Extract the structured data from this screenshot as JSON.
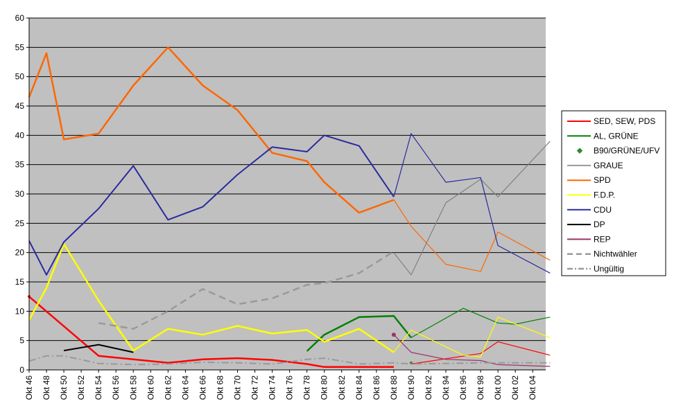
{
  "chart_data": {
    "type": "line",
    "categories": [
      "Okt 46",
      "Okt 48",
      "Okt 50",
      "Okt 52",
      "Okt 54",
      "Okt 56",
      "Okt 58",
      "Okt 60",
      "Okt 62",
      "Okt 64",
      "Okt 66",
      "Okt 68",
      "Okt 70",
      "Okt 72",
      "Okt 74",
      "Okt 76",
      "Okt 78",
      "Okt 80",
      "Okt 82",
      "Okt 84",
      "Okt 86",
      "Okt 88",
      "Okt 90",
      "Okt 92",
      "Okt 94",
      "Okt 96",
      "Okt 98",
      "Okt 00",
      "Okt 02",
      "Okt 04"
    ],
    "ylim": [
      0,
      60
    ],
    "yticks": [
      0,
      5,
      10,
      15,
      20,
      25,
      30,
      35,
      40,
      45,
      50,
      55,
      60
    ],
    "grid": "horizontal",
    "legend_position": "right",
    "plot_background": "#c0c0c0",
    "series": [
      {
        "name": "SED, SEW, PDS",
        "color": "#ff0000",
        "width": 2.5,
        "points": [
          [
            0,
            12.5
          ],
          [
            4,
            2.4
          ],
          [
            8,
            1.2
          ],
          [
            10,
            1.8
          ],
          [
            12,
            2.0
          ],
          [
            14,
            1.7
          ],
          [
            16,
            1.0
          ],
          [
            17,
            0.5
          ],
          [
            19,
            0.5
          ],
          [
            21,
            0.5
          ]
        ]
      },
      {
        "name": "SED, SEW, PDS",
        "color": "#ff0000",
        "width": 1.2,
        "points": [
          [
            22,
            1.0
          ],
          [
            26,
            2.8
          ],
          [
            27,
            4.8
          ],
          [
            30,
            2.5
          ]
        ]
      },
      {
        "name": "AL, GRÜNE",
        "color": "#008000",
        "width": 2.5,
        "points": [
          [
            16,
            3.2
          ],
          [
            17,
            6.0
          ],
          [
            19,
            9.0
          ],
          [
            21,
            9.2
          ],
          [
            22,
            5.5
          ]
        ]
      },
      {
        "name": "AL, GRÜNE",
        "color": "#008000",
        "width": 1.2,
        "points": [
          [
            22,
            5.5
          ],
          [
            25,
            10.5
          ],
          [
            27,
            8.0
          ],
          [
            28,
            7.8
          ],
          [
            30,
            9.0
          ]
        ]
      },
      {
        "name": "B90/GRÜNE/UFV",
        "color": "#2e8b2e",
        "width": 1.2,
        "points": [
          [
            22,
            1.2
          ]
        ]
      },
      {
        "name": "GRAUE",
        "color": "#808080",
        "width": 1.2,
        "points": [
          [
            21,
            20.0
          ],
          [
            22,
            16.2
          ],
          [
            24,
            28.5
          ],
          [
            26,
            32.5
          ],
          [
            27,
            29.5
          ],
          [
            30,
            39.0
          ]
        ]
      },
      {
        "name": "SPD",
        "color": "#ff6600",
        "width": 2.5,
        "points": [
          [
            0,
            46.5
          ],
          [
            1,
            54.0
          ],
          [
            2,
            39.3
          ],
          [
            4,
            40.3
          ],
          [
            6,
            48.5
          ],
          [
            8,
            55.0
          ],
          [
            10,
            48.5
          ],
          [
            12,
            44.3
          ],
          [
            14,
            37.0
          ],
          [
            16,
            35.6
          ],
          [
            17,
            32.0
          ],
          [
            19,
            26.8
          ],
          [
            21,
            29.0
          ]
        ]
      },
      {
        "name": "SPD",
        "color": "#ff6600",
        "width": 1.2,
        "points": [
          [
            21,
            29.0
          ],
          [
            22,
            24.5
          ],
          [
            24,
            18.0
          ],
          [
            26,
            16.8
          ],
          [
            27,
            23.5
          ],
          [
            30,
            18.7
          ]
        ]
      },
      {
        "name": "F.D.P.",
        "color": "#ffff00",
        "width": 2.5,
        "points": [
          [
            0,
            8.5
          ],
          [
            1,
            14.0
          ],
          [
            2,
            21.5
          ],
          [
            4,
            11.8
          ],
          [
            6,
            3.3
          ],
          [
            8,
            7.0
          ],
          [
            10,
            6.0
          ],
          [
            12,
            7.5
          ],
          [
            14,
            6.2
          ],
          [
            16,
            6.8
          ],
          [
            17,
            4.8
          ],
          [
            19,
            7.0
          ],
          [
            21,
            3.0
          ]
        ]
      },
      {
        "name": "F.D.P.",
        "color": "#ffff00",
        "width": 1.2,
        "points": [
          [
            21,
            3.0
          ],
          [
            22,
            6.8
          ],
          [
            25,
            2.5
          ],
          [
            26,
            2.2
          ],
          [
            27,
            9.0
          ],
          [
            30,
            5.5
          ]
        ]
      },
      {
        "name": "CDU",
        "color": "#2a2aa0",
        "width": 2.0,
        "points": [
          [
            0,
            22.0
          ],
          [
            1,
            16.2
          ],
          [
            2,
            21.8
          ],
          [
            4,
            27.5
          ],
          [
            6,
            34.8
          ],
          [
            8,
            25.6
          ],
          [
            10,
            27.8
          ],
          [
            12,
            33.3
          ],
          [
            14,
            38.0
          ],
          [
            16,
            37.2
          ],
          [
            17,
            40.0
          ],
          [
            19,
            38.2
          ],
          [
            21,
            29.5
          ]
        ]
      },
      {
        "name": "CDU",
        "color": "#2a2aa0",
        "width": 1.2,
        "points": [
          [
            21,
            29.5
          ],
          [
            22,
            40.3
          ],
          [
            24,
            32.0
          ],
          [
            26,
            32.8
          ],
          [
            27,
            21.2
          ],
          [
            30,
            16.5
          ]
        ]
      },
      {
        "name": "DP",
        "color": "#000000",
        "width": 2.0,
        "points": [
          [
            2,
            3.3
          ],
          [
            4,
            4.3
          ],
          [
            6,
            3.0
          ]
        ]
      },
      {
        "name": "REP",
        "color": "#993366",
        "width": 1.2,
        "points": [
          [
            21,
            6.0
          ],
          [
            22,
            3.0
          ],
          [
            24,
            1.8
          ],
          [
            26,
            1.6
          ],
          [
            27,
            0.9
          ],
          [
            30,
            0.6
          ]
        ]
      },
      {
        "name": "Nichtwähler",
        "color": "#999999",
        "width": 2.5,
        "dash": "10,6",
        "points": [
          [
            4,
            8.0
          ],
          [
            6,
            7.0
          ],
          [
            8,
            10.0
          ],
          [
            10,
            13.8
          ],
          [
            12,
            11.2
          ],
          [
            14,
            12.2
          ],
          [
            16,
            14.5
          ],
          [
            17,
            14.8
          ],
          [
            19,
            16.5
          ],
          [
            21,
            20.2
          ]
        ]
      },
      {
        "name": "Ungültig",
        "color": "#999999",
        "width": 2.0,
        "dash": "10,4,2,4",
        "points": [
          [
            0,
            1.5
          ],
          [
            1,
            2.4
          ],
          [
            2,
            2.4
          ],
          [
            4,
            1.1
          ],
          [
            6,
            0.9
          ],
          [
            8,
            1.0
          ],
          [
            10,
            1.3
          ],
          [
            12,
            1.2
          ],
          [
            14,
            1.0
          ],
          [
            16,
            1.8
          ],
          [
            17,
            2.0
          ],
          [
            19,
            1.0
          ],
          [
            21,
            1.2
          ],
          [
            22,
            1.0
          ],
          [
            24,
            1.1
          ],
          [
            26,
            1.2
          ],
          [
            27,
            1.2
          ],
          [
            30,
            1.2
          ]
        ]
      }
    ],
    "legend": [
      {
        "name": "SED, SEW, PDS",
        "color": "#ff0000",
        "style": "line"
      },
      {
        "name": "AL, GRÜNE",
        "color": "#008000",
        "style": "line"
      },
      {
        "name": "B90/GRÜNE/UFV",
        "color": "#2e8b2e",
        "style": "marker"
      },
      {
        "name": "GRAUE",
        "color": "#999999",
        "style": "line"
      },
      {
        "name": "SPD",
        "color": "#ff6600",
        "style": "line"
      },
      {
        "name": "F.D.P.",
        "color": "#ffff00",
        "style": "line"
      },
      {
        "name": "CDU",
        "color": "#2a2aa0",
        "style": "line"
      },
      {
        "name": "DP",
        "color": "#000000",
        "style": "line"
      },
      {
        "name": "REP",
        "color": "#993366",
        "style": "line"
      },
      {
        "name": "Nichtwähler",
        "color": "#999999",
        "style": "dash"
      },
      {
        "name": "Ungültig",
        "color": "#999999",
        "style": "dashdot"
      }
    ]
  }
}
